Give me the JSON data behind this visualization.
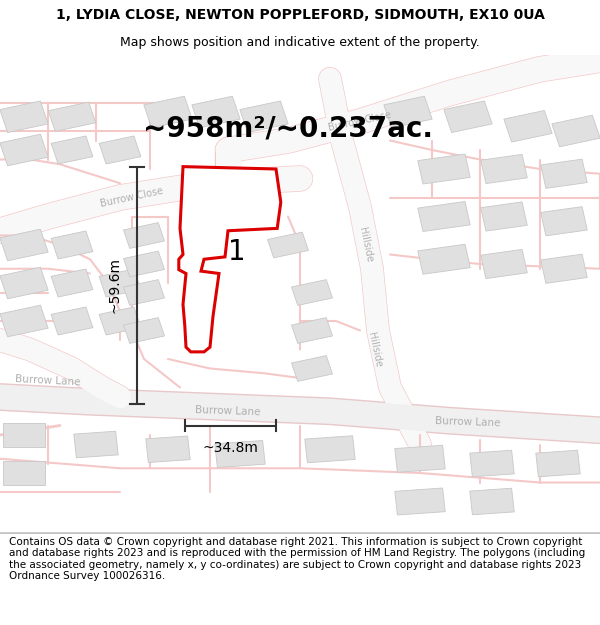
{
  "title": "1, LYDIA CLOSE, NEWTON POPPLEFORD, SIDMOUTH, EX10 0UA",
  "subtitle": "Map shows position and indicative extent of the property.",
  "footer": "Contains OS data © Crown copyright and database right 2021. This information is subject to Crown copyright and database rights 2023 and is reproduced with the permission of HM Land Registry. The polygons (including the associated geometry, namely x, y co-ordinates) are subject to Crown copyright and database rights 2023 Ordnance Survey 100026316.",
  "area_label": "~958m²/~0.237ac.",
  "label_number": "1",
  "dim_vertical": "~59.6m",
  "dim_horizontal": "~34.8m",
  "road_color": "#f5c8c8",
  "road_fill": "#ffffff",
  "building_fill": "#e0e0e0",
  "building_edge": "#c8c8c8",
  "prop_fill": "#ffffff",
  "prop_edge": "#dd0000",
  "road_label_color": "#b0b0b0",
  "dim_color": "#333333",
  "area_font": 20,
  "title_font": 10,
  "subtitle_font": 9,
  "footer_font": 7.5,
  "road_label_font": 7,
  "dim_font": 10,
  "number_font": 20
}
